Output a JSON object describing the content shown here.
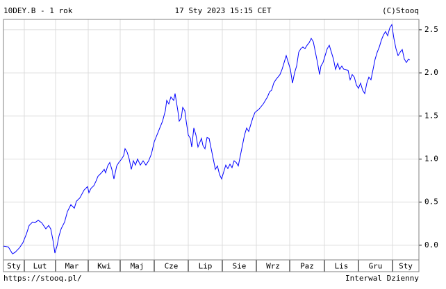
{
  "chart_data": {
    "type": "line",
    "title": "10DEY.B - 1 rok",
    "date": "17 Sty 2023 15:15 CET",
    "copyright": "(C)Stooq",
    "footer_left": "https://stooq.pl/",
    "footer_right": "Interwal Dzienny",
    "color": "#0000ff",
    "grid": true,
    "xlim": [
      0,
      598
    ],
    "ylim": [
      -0.17,
      2.62
    ],
    "yticks": [
      {
        "value": 0,
        "label": "0.0"
      },
      0.5,
      {
        "value": 1,
        "label": "1.0"
      },
      1.5,
      {
        "value": 2,
        "label": "2.0"
      },
      2.5
    ],
    "xticks": [
      {
        "value": -15,
        "label": "Sty"
      },
      {
        "value": 30,
        "label": "Lut"
      },
      {
        "value": 75,
        "label": "Mar"
      },
      {
        "value": 122,
        "label": "Kwi"
      },
      {
        "value": 168,
        "label": "Maj"
      },
      {
        "value": 217,
        "label": "Cze"
      },
      {
        "value": 266,
        "label": "Lip"
      },
      {
        "value": 315,
        "label": "Sie"
      },
      {
        "value": 364,
        "label": "Wrz"
      },
      {
        "value": 412,
        "label": "Paz"
      },
      {
        "value": 462,
        "label": "Lis"
      },
      {
        "value": 511,
        "label": "Gru"
      },
      {
        "value": 560,
        "label": "Sty"
      }
    ],
    "x": [
      0,
      7,
      13,
      17,
      23,
      28,
      33,
      37,
      42,
      45,
      50,
      55,
      61,
      65,
      68,
      71,
      74,
      77,
      80,
      83,
      88,
      92,
      97,
      102,
      105,
      110,
      116,
      121,
      123,
      126,
      130,
      133,
      136,
      141,
      145,
      147,
      150,
      153,
      156,
      159,
      163,
      166,
      170,
      173,
      175,
      178,
      181,
      184,
      187,
      190,
      193,
      197,
      201,
      205,
      209,
      213,
      217,
      221,
      225,
      229,
      233,
      235,
      238,
      241,
      245,
      247,
      249,
      251,
      253,
      256,
      258,
      261,
      263,
      266,
      269,
      271,
      274,
      277,
      280,
      285,
      287,
      290,
      293,
      296,
      299,
      302,
      305,
      308,
      311,
      314,
      317,
      320,
      323,
      326,
      329,
      332,
      335,
      338,
      341,
      344,
      347,
      350,
      353,
      356,
      359,
      362,
      368,
      374,
      377,
      380,
      383,
      386,
      389,
      392,
      398,
      401,
      404,
      407,
      410,
      413,
      416,
      419,
      422,
      425,
      428,
      431,
      434,
      437,
      440,
      443,
      446,
      449,
      452,
      455,
      457,
      460,
      463,
      466,
      469,
      472,
      475,
      478,
      481,
      484,
      487,
      490,
      496,
      499,
      502,
      505,
      508,
      511,
      514,
      517,
      520,
      523,
      526,
      529,
      532,
      535,
      538,
      541,
      544,
      547,
      550,
      553,
      556,
      559,
      562,
      565,
      568,
      571,
      574,
      577,
      580,
      583,
      585
    ],
    "values": [
      -0.01,
      -0.02,
      -0.1,
      -0.08,
      -0.03,
      0.03,
      0.13,
      0.23,
      0.27,
      0.26,
      0.29,
      0.26,
      0.19,
      0.23,
      0.19,
      0.07,
      -0.09,
      -0.01,
      0.11,
      0.19,
      0.27,
      0.39,
      0.47,
      0.43,
      0.51,
      0.55,
      0.64,
      0.68,
      0.61,
      0.66,
      0.69,
      0.74,
      0.8,
      0.84,
      0.88,
      0.84,
      0.92,
      0.96,
      0.88,
      0.77,
      0.92,
      0.96,
      1.0,
      1.04,
      1.12,
      1.08,
      1.0,
      0.88,
      0.98,
      0.93,
      1.0,
      0.93,
      0.98,
      0.93,
      0.98,
      1.06,
      1.2,
      1.28,
      1.36,
      1.44,
      1.56,
      1.68,
      1.64,
      1.72,
      1.68,
      1.76,
      1.66,
      1.56,
      1.44,
      1.48,
      1.6,
      1.56,
      1.44,
      1.28,
      1.24,
      1.14,
      1.36,
      1.28,
      1.14,
      1.24,
      1.16,
      1.12,
      1.25,
      1.24,
      1.12,
      1.0,
      0.88,
      0.92,
      0.82,
      0.77,
      0.85,
      0.93,
      0.89,
      0.94,
      0.9,
      0.98,
      0.96,
      0.92,
      1.04,
      1.16,
      1.28,
      1.36,
      1.32,
      1.4,
      1.48,
      1.54,
      1.58,
      1.64,
      1.68,
      1.72,
      1.78,
      1.8,
      1.88,
      1.92,
      1.98,
      2.04,
      2.12,
      2.2,
      2.12,
      2.04,
      1.88,
      2.0,
      2.08,
      2.24,
      2.28,
      2.3,
      2.28,
      2.32,
      2.35,
      2.4,
      2.36,
      2.24,
      2.12,
      1.98,
      2.08,
      2.12,
      2.2,
      2.28,
      2.32,
      2.24,
      2.16,
      2.04,
      2.11,
      2.04,
      2.08,
      2.04,
      2.03,
      1.92,
      1.98,
      1.95,
      1.86,
      1.82,
      1.88,
      1.8,
      1.76,
      1.88,
      1.95,
      1.92,
      2.04,
      2.16,
      2.24,
      2.3,
      2.38,
      2.44,
      2.48,
      2.43,
      2.52,
      2.56,
      2.4,
      2.28,
      2.2,
      2.24,
      2.27,
      2.16,
      2.12,
      2.16,
      2.15
    ]
  }
}
